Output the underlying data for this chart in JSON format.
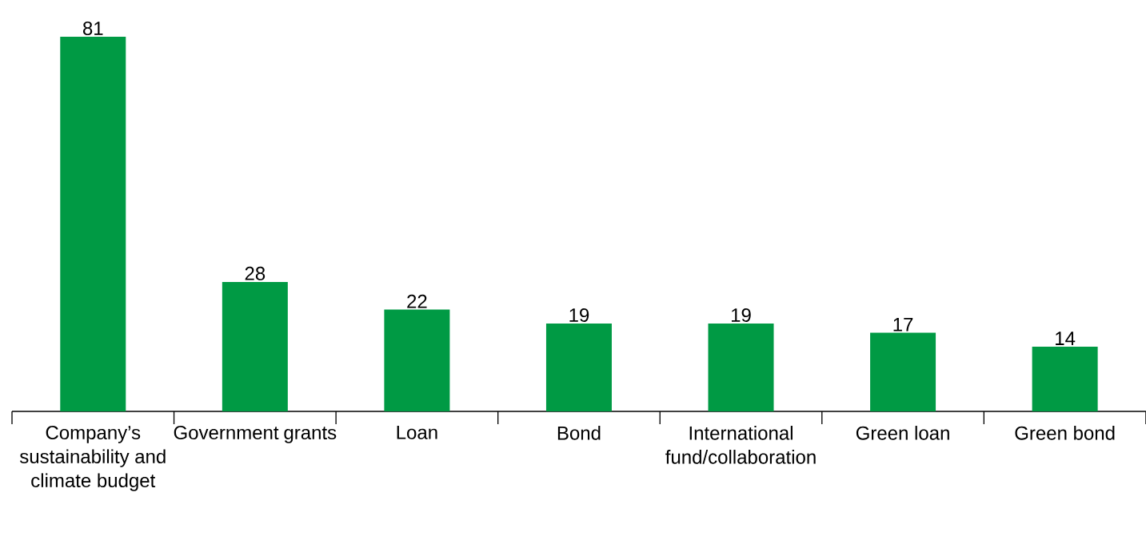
{
  "chart_data": {
    "type": "bar",
    "categories": [
      "Company’s sustainability and climate budget",
      "Government grants",
      "Loan",
      "Bond",
      "International fund/collaboration",
      "Green loan",
      "Green bond"
    ],
    "values": [
      81,
      28,
      22,
      19,
      19,
      17,
      14
    ],
    "color": "#009a44",
    "data_labels": true
  }
}
